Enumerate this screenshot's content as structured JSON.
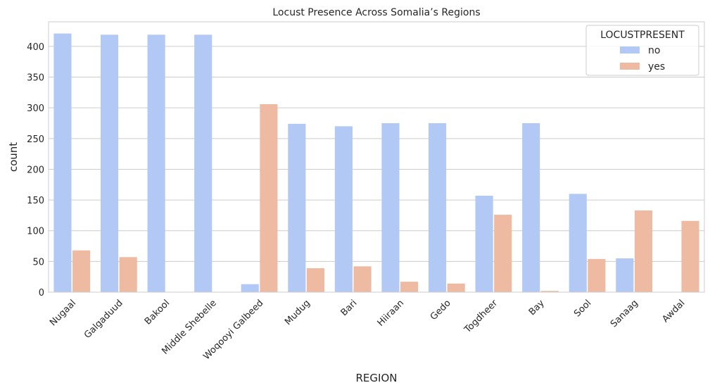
{
  "chart_data": {
    "type": "bar",
    "title": "Locust Presence Across Somalia’s Regions",
    "xlabel": "REGION",
    "ylabel": "count",
    "categories": [
      "Nugaal",
      "Galgaduud",
      "Bakool",
      "Middle Shebelle",
      "Woqooyi Galbeed",
      "Mudug",
      "Bari",
      "Hiiraan",
      "Gedo",
      "Togdheer",
      "Bay",
      "Sool",
      "Sanaag",
      "Awdal"
    ],
    "series": [
      {
        "name": "no",
        "color": "#b3c9f5",
        "values": [
          421,
          419,
          419,
          419,
          13,
          274,
          270,
          275,
          275,
          157,
          275,
          160,
          55,
          0
        ]
      },
      {
        "name": "yes",
        "color": "#eebba2",
        "values": [
          68,
          57,
          0,
          0,
          306,
          39,
          42,
          17,
          14,
          126,
          2,
          54,
          133,
          116
        ]
      }
    ],
    "yticks": [
      0,
      50,
      100,
      150,
      200,
      250,
      300,
      350,
      400
    ],
    "ylim": [
      0,
      440
    ],
    "grid": true,
    "legend": {
      "title": "LOCUSTPRESENT",
      "placement": "top-right"
    }
  }
}
